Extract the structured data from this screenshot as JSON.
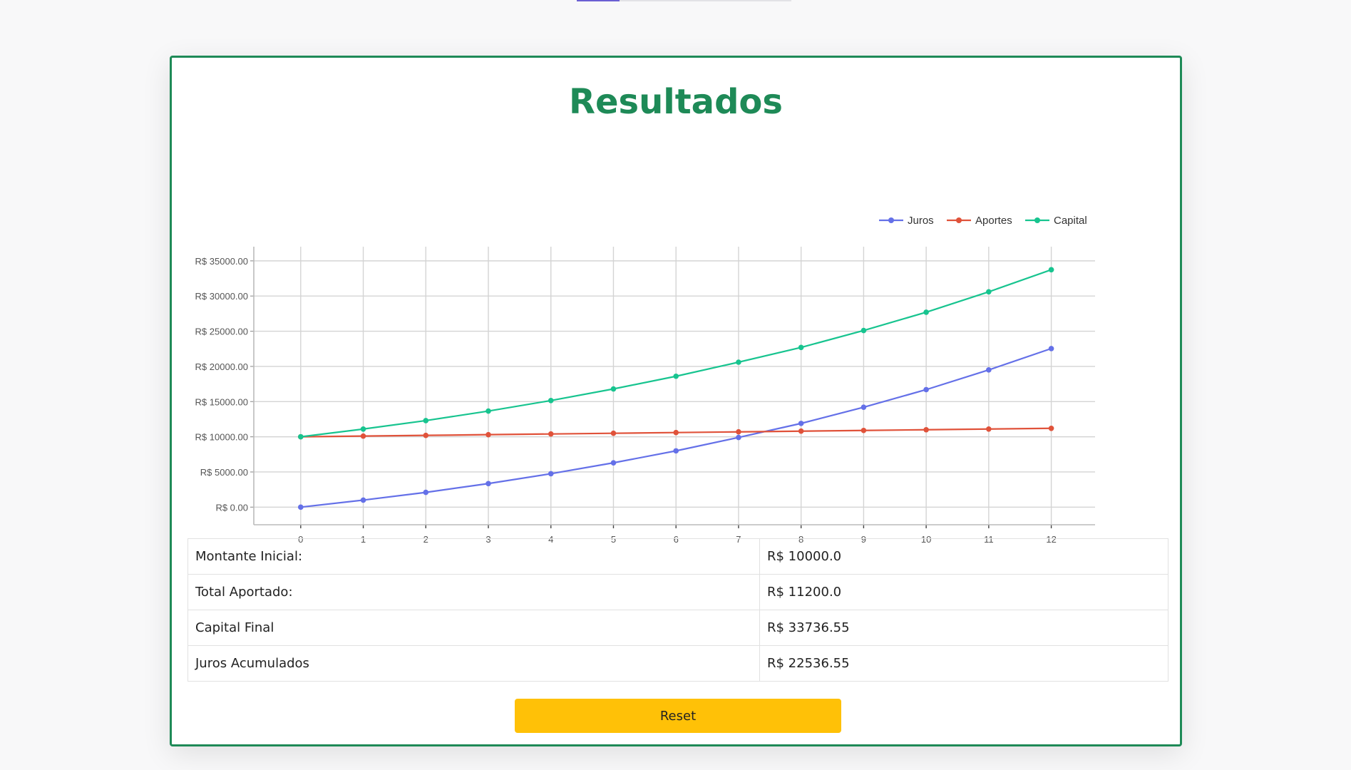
{
  "page": {
    "title": "Resultados"
  },
  "chart_data": {
    "type": "line",
    "x": [
      0,
      1,
      2,
      3,
      4,
      5,
      6,
      7,
      8,
      9,
      10,
      11,
      12
    ],
    "xlim": [
      -0.75,
      12.7
    ],
    "ylim": [
      -2500,
      36000
    ],
    "yticks": [
      0,
      5000,
      10000,
      15000,
      20000,
      25000,
      30000,
      35000
    ],
    "ytick_labels": [
      "R$ 0.00",
      "R$ 5000.00",
      "R$ 10000.00",
      "R$ 15000.00",
      "R$ 20000.00",
      "R$ 25000.00",
      "R$ 30000.00",
      "R$ 35000.00"
    ],
    "xtick_labels": [
      "0",
      "1",
      "2",
      "3",
      "4",
      "5",
      "6",
      "7",
      "8",
      "9",
      "10",
      "11",
      "12"
    ],
    "grid": true,
    "legend": "top-right",
    "series": [
      {
        "name": "Juros",
        "color": "#6470e8",
        "values": [
          0,
          1000,
          2100,
          3350,
          4750,
          6300,
          8000,
          9900,
          11900,
          14200,
          16700,
          19500,
          22536.55
        ]
      },
      {
        "name": "Aportes",
        "color": "#e0523a",
        "values": [
          10000,
          10100,
          10200,
          10300,
          10400,
          10500,
          10600,
          10700,
          10800,
          10900,
          11000,
          11100,
          11200
        ]
      },
      {
        "name": "Capital",
        "color": "#17c48f",
        "values": [
          10000,
          11100,
          12300,
          13650,
          15150,
          16800,
          18600,
          20600,
          22700,
          25100,
          27700,
          30600,
          33736.55
        ]
      }
    ]
  },
  "summary": {
    "rows": [
      {
        "label": "Montante Inicial:",
        "value": "R$ 10000.0"
      },
      {
        "label": "Total Aportado:",
        "value": "R$ 11200.0"
      },
      {
        "label": "Capital Final",
        "value": "R$ 33736.55"
      },
      {
        "label": "Juros Acumulados",
        "value": "R$ 22536.55"
      }
    ]
  },
  "actions": {
    "reset_label": "Reset"
  }
}
